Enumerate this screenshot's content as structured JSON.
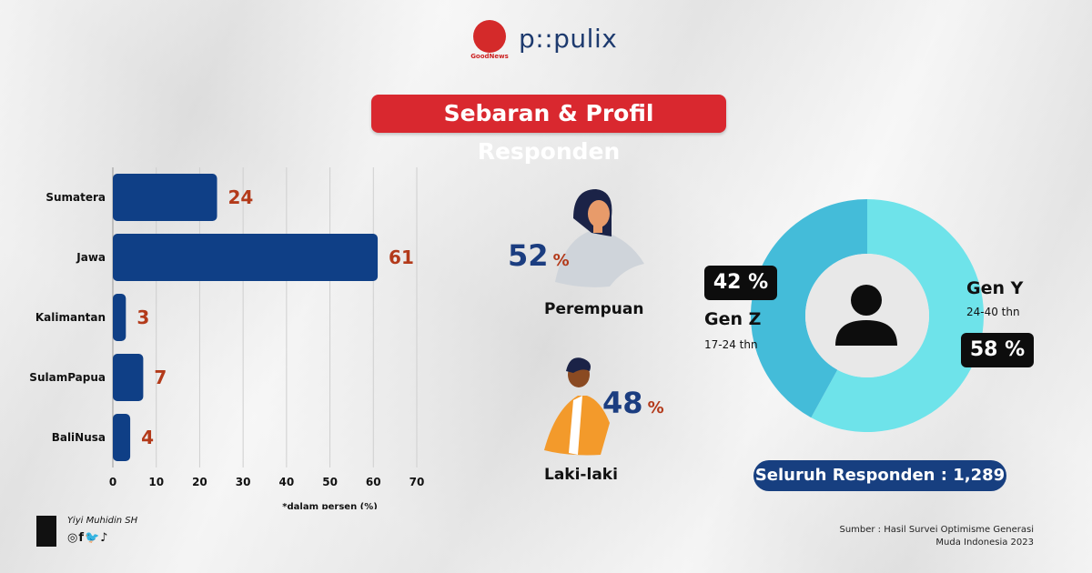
{
  "header": {
    "logo_goodnews_text": "GoodNews",
    "logo_populix_text": "p::pulix",
    "title": "Sebaran & Profil Responden"
  },
  "chart_data": {
    "type": "bar",
    "orientation": "horizontal",
    "categories": [
      "Sumatera",
      "Jawa",
      "Kalimantan",
      "SulamPapua",
      "BaliNusa"
    ],
    "values": [
      24,
      61,
      3,
      7,
      4
    ],
    "xlim": [
      0,
      70
    ],
    "xticks": [
      0,
      10,
      20,
      30,
      40,
      50,
      60,
      70
    ],
    "note": "*dalam persen (%)",
    "bar_color": "#0f3f86",
    "value_color": "#b33a1a",
    "grid": true
  },
  "gender": {
    "female": {
      "value": "52",
      "unit": "%",
      "label": "Perempuan"
    },
    "male": {
      "value": "48",
      "unit": "%",
      "label": "Laki-laki"
    }
  },
  "generation_chart": {
    "type": "pie",
    "slices": [
      {
        "name": "Gen Z",
        "range": "17-24  thn",
        "value": 42,
        "display": "42 %",
        "color": "#44bcd9"
      },
      {
        "name": "Gen Y",
        "range": "24-40 thn",
        "value": 58,
        "display": "58 %",
        "color": "#6ee3ea"
      }
    ]
  },
  "total": "Seluruh Responden : 1,289",
  "footer": {
    "author": "Yiyi Muhidin SH",
    "social": "◎f🐦♪",
    "source_line1": "Sumber :  Hasil Survei Optimisme Generasi",
    "source_line2": "Muda Indonesia 2023"
  }
}
